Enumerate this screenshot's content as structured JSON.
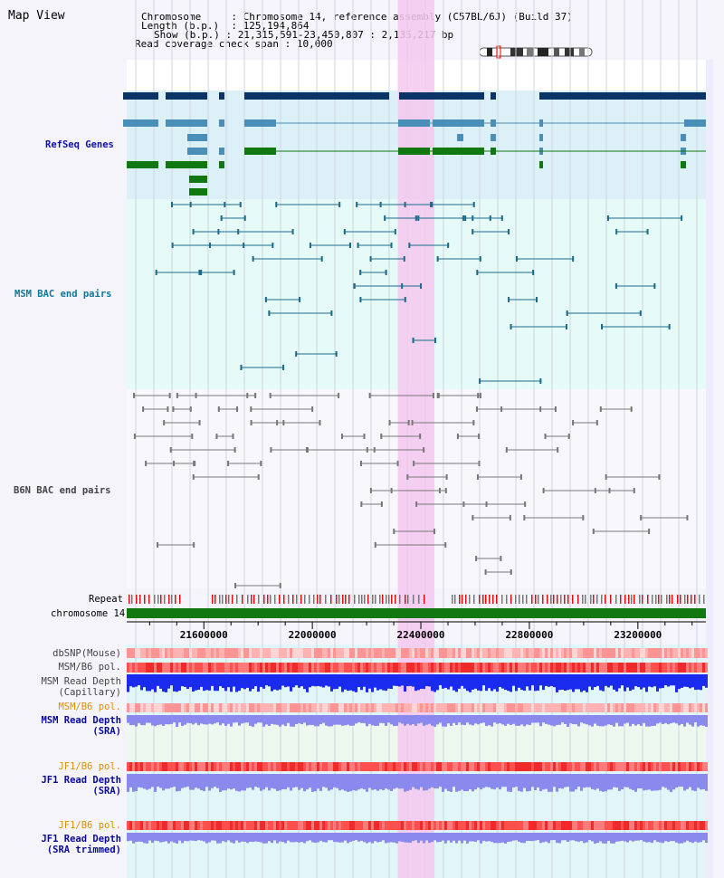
{
  "title": "Map View",
  "info": {
    "chromosome_key": "Chromosome",
    "chromosome_value": "Chromosome 14, reference assembly (C57BL/6J) (Build 37)",
    "length_key": "Length (b.p.)",
    "length_value": "125,194,864",
    "show_key": "Show (b.p.)",
    "show_value": "21,315,591-23,450,807 : 2,135,217 bp",
    "coverage_key": "Read coverage check span",
    "coverage_value": "10,000"
  },
  "tracks": {
    "refseq": "RefSeq Genes",
    "msm_bac": "MSM BAC end pairs",
    "b6n_bac": "B6N BAC end pairs",
    "repeat": "Repeat",
    "chromosome": "chromosome 14",
    "dbsnp": "dbSNP(Mouse)",
    "msm_b6_pol_1": "MSM/B6 pol.",
    "msm_depth_cap_1": "MSM Read Depth",
    "msm_depth_cap_2": "(Capillary)",
    "msm_b6_pol_2": "MSM/B6 pol.",
    "msm_depth_sra_1": "MSM Read Depth",
    "msm_depth_sra_2": "(SRA)",
    "jf1_b6_pol_1": "JF1/B6 pol.",
    "jf1_depth_1": "JF1 Read Depth",
    "jf1_depth_2": "(SRA)",
    "jf1_b6_pol_2": "JF1/B6 pol.",
    "jf1_trim_1": "JF1 Read Depth",
    "jf1_trim_2": "(SRA trimmed)"
  },
  "axis": {
    "ticks": [
      "21600000",
      "22000000",
      "22400000",
      "22800000",
      "23200000"
    ],
    "tick_values": [
      21600000,
      22000000,
      22400000,
      22800000,
      23200000
    ],
    "range": [
      21315591,
      23450807
    ]
  },
  "highlight_range": [
    22315000,
    22450000
  ],
  "colors": {
    "refseq_dark": "#0a3366",
    "refseq_light": "#4a8fb8",
    "refseq_green": "#117711",
    "msm_pair": "#1a6a8a",
    "b6n_pair": "#777777",
    "chromosome": "#117711",
    "highlight": "#f5c8ee",
    "depth_blue": "#1a2aee",
    "depth_light": "#8a8aee"
  }
}
